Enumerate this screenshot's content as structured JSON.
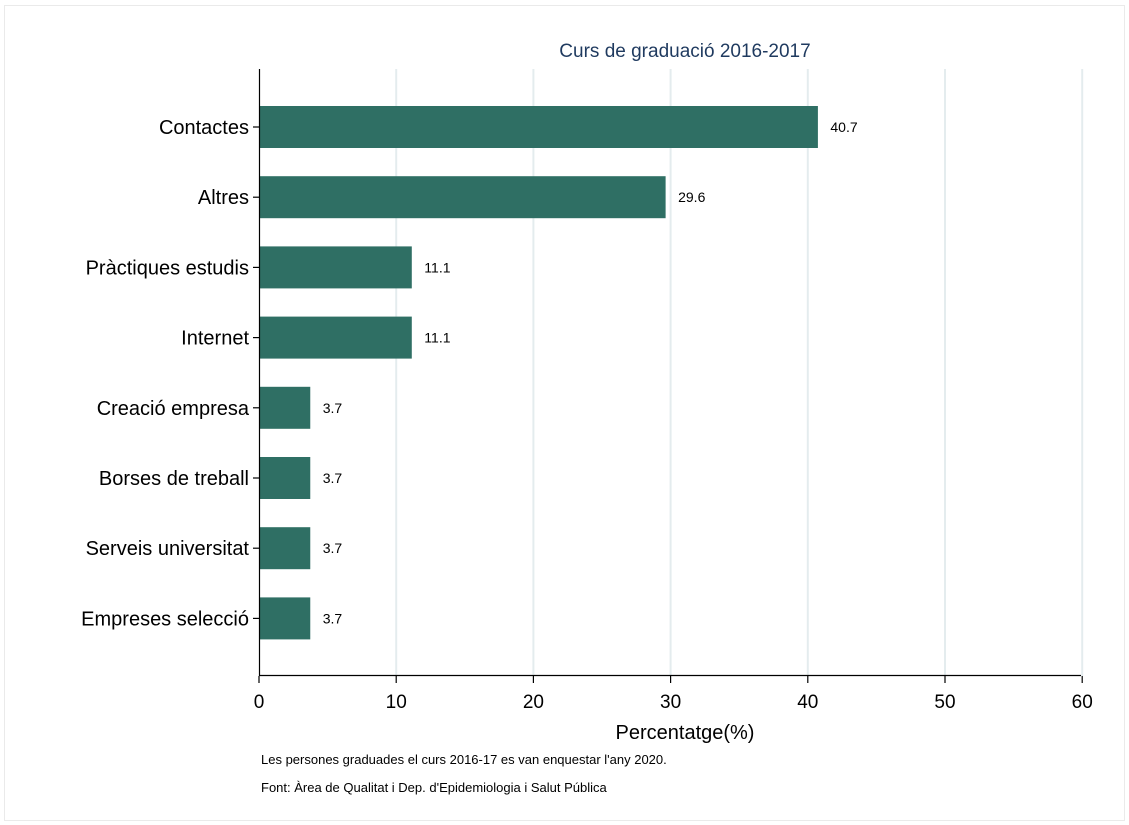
{
  "chart_data": {
    "type": "bar",
    "orientation": "horizontal",
    "title": "Curs de graduació 2016-2017",
    "xlabel": "Percentatge(%)",
    "ylabel": "",
    "categories": [
      "Contactes",
      "Altres",
      "Pràctiques estudis",
      "Internet",
      "Creació empresa",
      "Borses de treball",
      "Serveis universitat",
      "Empreses selecció"
    ],
    "values": [
      40.7,
      29.6,
      11.1,
      11.1,
      3.7,
      3.7,
      3.7,
      3.7
    ],
    "value_labels": [
      "40.7",
      "29.6",
      "11.1",
      "11.1",
      "3.7",
      "3.7",
      "3.7",
      "3.7"
    ],
    "xlim": [
      0,
      60
    ],
    "xticks": [
      0,
      10,
      20,
      30,
      40,
      50,
      60
    ],
    "grid": true,
    "bar_color": "#2f6f64",
    "title_color": "#1f3a5f",
    "grid_color": "#e4ecee"
  },
  "notes": {
    "line1": "Les persones graduades el curs 2016-17 es van enquestar l'any 2020.",
    "line2": "Font: Àrea de Qualitat i Dep. d'Epidemiologia i Salut Pública"
  }
}
